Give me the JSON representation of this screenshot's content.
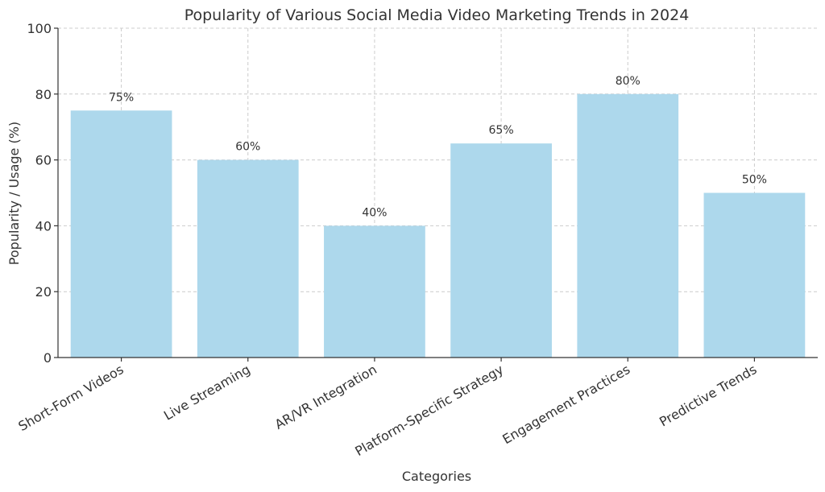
{
  "chart_data": {
    "type": "bar",
    "title": "Popularity of Various Social Media Video Marketing Trends in 2024",
    "xlabel": "Categories",
    "ylabel": "Popularity / Usage (%)",
    "categories": [
      "Short-Form Videos",
      "Live Streaming",
      "AR/VR Integration",
      "Platform-Specific Strategy",
      "Engagement Practices",
      "Predictive Trends"
    ],
    "values": [
      75,
      60,
      40,
      65,
      80,
      50
    ],
    "data_labels": [
      "75%",
      "60%",
      "40%",
      "65%",
      "80%",
      "50%"
    ],
    "ylim": [
      0,
      100
    ],
    "yticks": [
      0,
      20,
      40,
      60,
      80,
      100
    ],
    "grid": true,
    "bar_color": "#add8ec"
  }
}
